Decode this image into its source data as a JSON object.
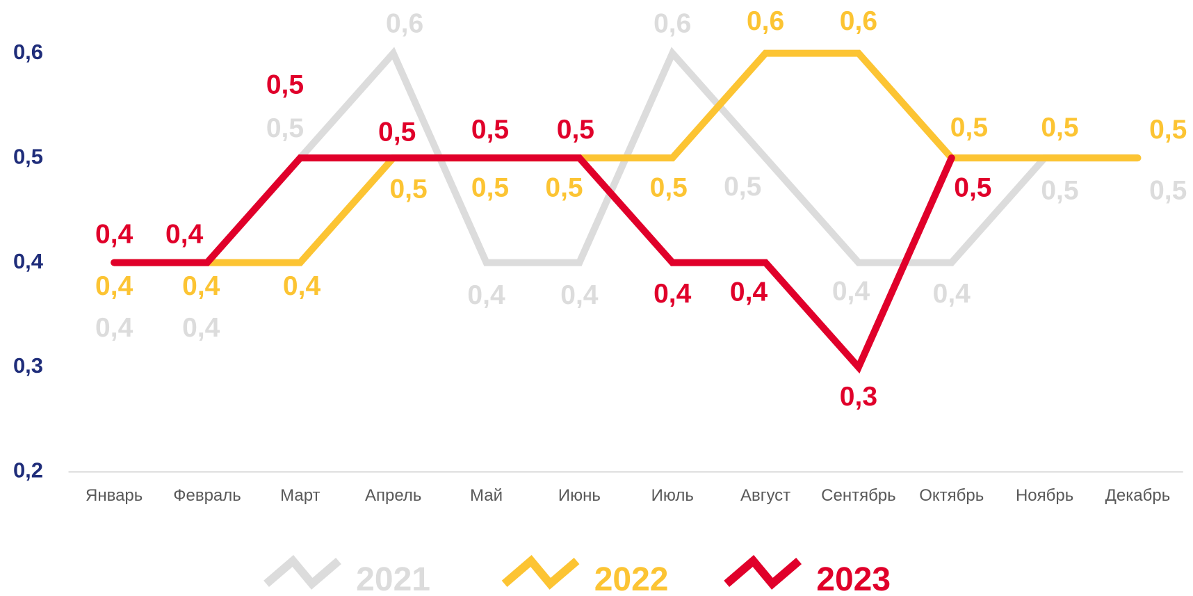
{
  "chart_data": {
    "type": "line",
    "categories": [
      "Январь",
      "Февраль",
      "Март",
      "Апрель",
      "Май",
      "Июнь",
      "Июль",
      "Август",
      "Сентябрь",
      "Октябрь",
      "Ноябрь",
      "Декабрь"
    ],
    "series": [
      {
        "name": "2021",
        "color": "#dcdcdc",
        "values": [
          0.4,
          0.4,
          0.5,
          0.6,
          0.4,
          0.4,
          0.6,
          0.5,
          0.4,
          0.4,
          0.5,
          0.5
        ],
        "value_labels": [
          "0,4",
          "0,4",
          "0,5",
          "0,6",
          "0,4",
          "0,4",
          "0,6",
          "0,5",
          "0,4",
          "0,4",
          "0,5",
          "0,5"
        ]
      },
      {
        "name": "2022",
        "color": "#fcc433",
        "values": [
          0.4,
          0.4,
          0.4,
          0.5,
          0.5,
          0.5,
          0.5,
          0.6,
          0.6,
          0.5,
          0.5,
          0.5
        ],
        "value_labels": [
          "0,4",
          "0,4",
          "0,4",
          "0,5",
          "0,5",
          "0,5",
          "0,5",
          "0,6",
          "0,6",
          "0,5",
          "0,5",
          "0,5"
        ]
      },
      {
        "name": "2023",
        "color": "#e0002a",
        "values": [
          0.4,
          0.4,
          0.5,
          0.5,
          0.5,
          0.5,
          0.4,
          0.4,
          0.3,
          0.5,
          null,
          null
        ],
        "value_labels": [
          "0,4",
          "0,4",
          "0,5",
          "0,5",
          "0,5",
          "0,5",
          "0,4",
          "0,4",
          "0,3",
          "0,5",
          null,
          null
        ]
      }
    ],
    "ylim": [
      0.2,
      0.6
    ],
    "yticks": [
      {
        "value": 0.2,
        "label": "0,2"
      },
      {
        "value": 0.3,
        "label": "0,3"
      },
      {
        "value": 0.4,
        "label": "0,4"
      },
      {
        "value": 0.5,
        "label": "0,5"
      },
      {
        "value": 0.6,
        "label": "0,6"
      }
    ],
    "legend": "bottom"
  }
}
